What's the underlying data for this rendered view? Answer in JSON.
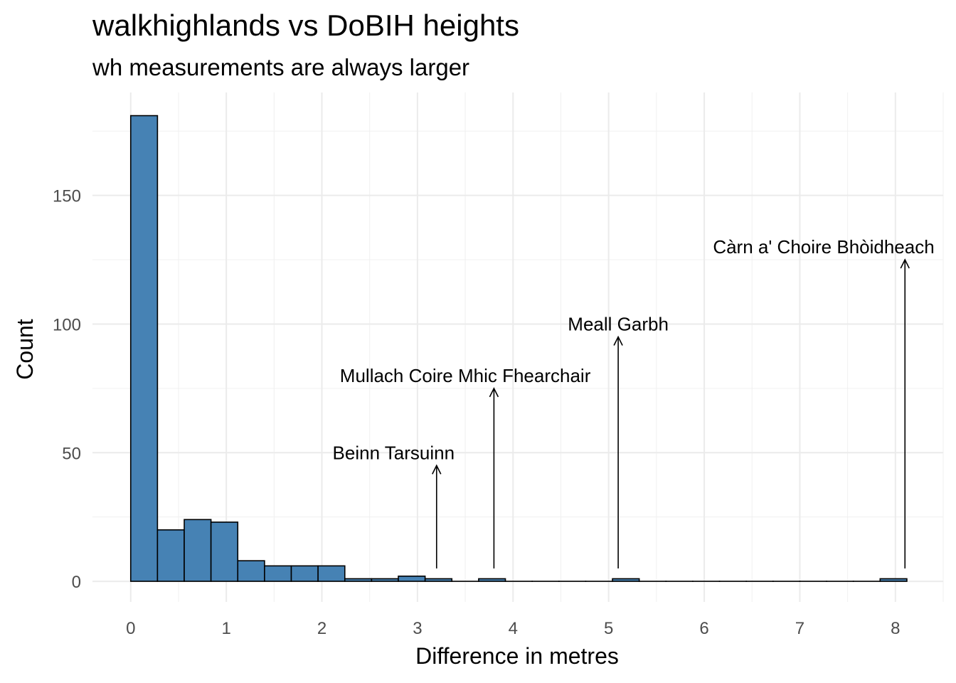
{
  "chart_data": {
    "type": "bar",
    "title": "walkhighlands vs DoBIH heights",
    "subtitle": "wh measurements are always larger",
    "xlabel": "Difference in metres",
    "ylabel": "Count",
    "xlim": [
      -0.4,
      8.5
    ],
    "ylim": [
      -8,
      190
    ],
    "xticks": [
      0,
      1,
      2,
      3,
      4,
      5,
      6,
      7,
      8
    ],
    "yticks": [
      0,
      50,
      100,
      150
    ],
    "bin_width": 0.28,
    "bin_start": 0.0,
    "values": [
      181,
      20,
      24,
      23,
      8,
      6,
      6,
      6,
      1,
      1,
      2,
      1,
      0,
      1,
      0,
      0,
      0,
      0,
      1,
      0,
      0,
      0,
      0,
      0,
      0,
      0,
      0,
      0,
      1
    ],
    "bar_fill": "#4682b4",
    "bar_stroke": "#000000",
    "grid": true,
    "annotations": [
      {
        "label": "Beinn Tarsuinn",
        "x": 3.2,
        "y_start": 5,
        "y_end": 45,
        "label_x": 2.75,
        "label_y": 50
      },
      {
        "label": "Mullach Coire Mhic Fhearchair",
        "x": 3.8,
        "y_start": 5,
        "y_end": 75,
        "label_x": 3.5,
        "label_y": 80
      },
      {
        "label": "Meall Garbh",
        "x": 5.1,
        "y_start": 5,
        "y_end": 95,
        "label_x": 5.1,
        "label_y": 100
      },
      {
        "label": "Càrn a' Choire Bhòidheach",
        "x": 8.1,
        "y_start": 5,
        "y_end": 125,
        "label_x": 7.25,
        "label_y": 130
      }
    ]
  }
}
